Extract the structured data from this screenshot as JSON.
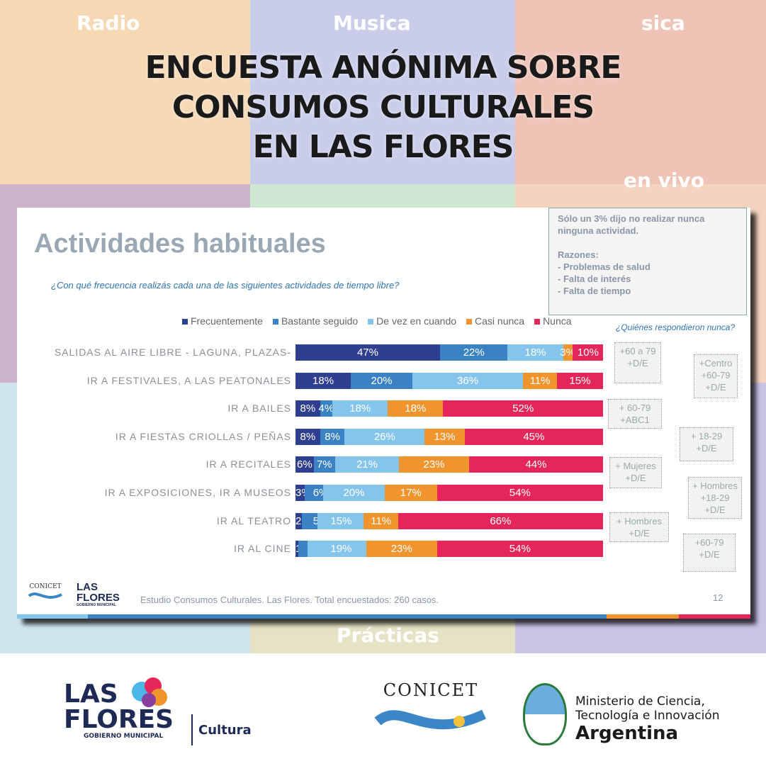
{
  "poster": {
    "title_lines": [
      "ENCUESTA ANÓNIMA SOBRE",
      "CONSUMOS CULTURALES",
      "EN LAS FLORES"
    ],
    "bg_labels": [
      "Radio",
      "Musica",
      "sica",
      "en vivo",
      "Prácticas"
    ]
  },
  "slide": {
    "title": "Actividades habituales",
    "question": "¿Con qué frecuencia realizás cada una de las siguientes actividades de tiempo libre?",
    "note": "Sólo un 3% dijo no realizar nunca\nninguna actividad.\n\nRazones:\n- Problemas de salud\n- Falta de interés\n- Falta de tiempo",
    "who_title": "¿Quiénes respondieron nunca?",
    "footer": "Estudio Consumos Culturales. Las Flores. Total encuestados: 260 casos.",
    "page_number": "12",
    "logos": {
      "conicet": "CONICET",
      "las_flores": "LAS FLORES",
      "gobierno": "GOBIERNO MUNICIPAL"
    }
  },
  "never_boxes": [
    "+60 a 79\n+D/E",
    "+Centro\n+60-79\n+D/E",
    "+ 60-79\n+ABC1",
    "+ 18-29\n+D/E",
    "+ Mujeres\n+D/E",
    "+ Hombres\n+18-29\n+D/E",
    "+ Hombres\n+D/E",
    "+60-79\n+D/E"
  ],
  "chart_data": {
    "type": "bar",
    "orientation": "horizontal",
    "stacked": true,
    "unit": "%",
    "categories": [
      "SALIDAS AL AIRE LIBRE - LAGUNA, PLAZAS-",
      "IR A FESTIVALES, A LAS PEATONALES",
      "IR A BAILES",
      "IR A FIESTAS CRIOLLAS / PEÑAS",
      "IR A RECITALES",
      "IR A EXPOSICIONES, IR A MUSEOS",
      "IR AL TEATRO",
      "IR AL CINE"
    ],
    "series": [
      {
        "name": "Frecuentemente",
        "color": "#2e3f8f",
        "values": [
          47,
          18,
          8,
          8,
          6,
          3,
          2,
          1
        ]
      },
      {
        "name": "Bastante seguido",
        "color": "#3a82c4",
        "values": [
          22,
          20,
          4,
          8,
          7,
          6,
          5,
          3
        ]
      },
      {
        "name": "De vez en cuando",
        "color": "#85c5ec",
        "values": [
          18,
          36,
          18,
          26,
          21,
          20,
          15,
          19
        ]
      },
      {
        "name": "Casi nunca",
        "color": "#f0952e",
        "values": [
          3,
          11,
          18,
          13,
          23,
          17,
          11,
          23
        ]
      },
      {
        "name": "Nunca",
        "color": "#e5265a",
        "values": [
          10,
          15,
          52,
          45,
          44,
          54,
          66,
          54
        ]
      }
    ],
    "legend": "top"
  },
  "bottom": {
    "las_flores": "LAS FLORES",
    "gobierno": "GOBIERNO MUNICIPAL",
    "cultura": "Cultura",
    "conicet": "CONICET",
    "ministerio_line1": "Ministerio de Ciencia,",
    "ministerio_line2": "Tecnología e Innovación",
    "country": "Argentina"
  }
}
